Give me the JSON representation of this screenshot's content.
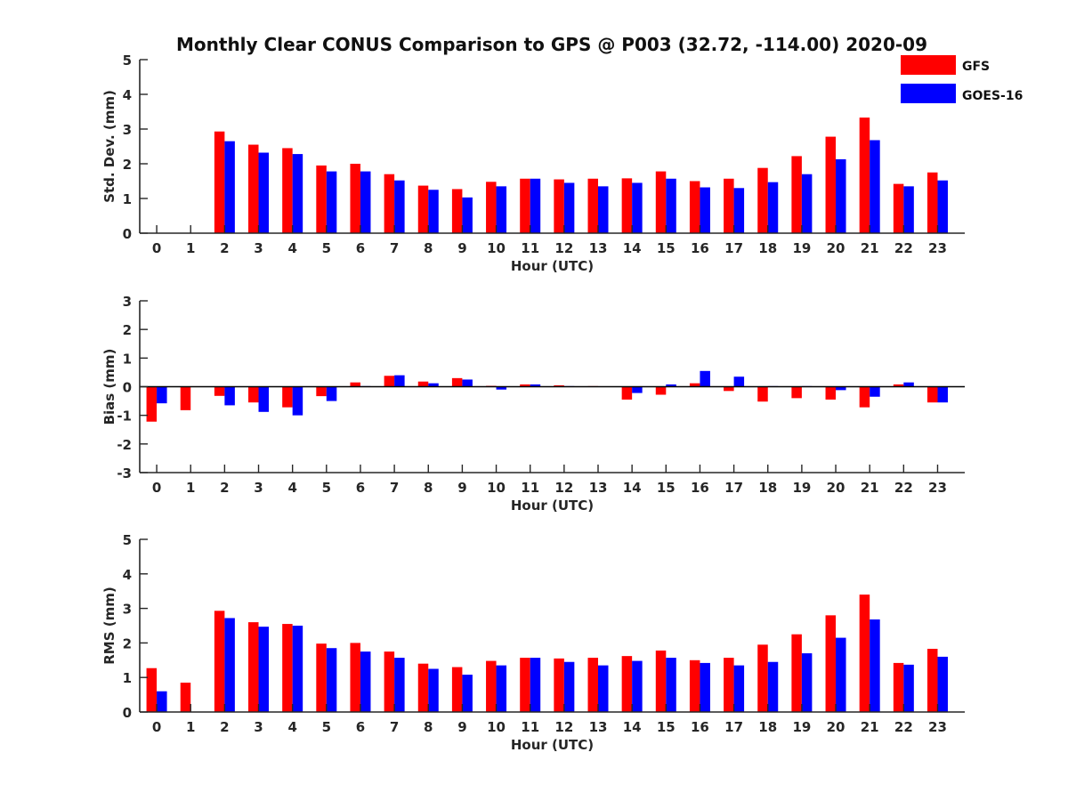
{
  "figure_title": "Monthly Clear CONUS Comparison to GPS @ P003 (32.72, -114.00) 2020-09",
  "legend": [
    {
      "label": "GFS",
      "color": "#ff0000"
    },
    {
      "label": "GOES-16",
      "color": "#0000ff"
    }
  ],
  "chart_data": [
    {
      "type": "bar",
      "xlabel": "Hour (UTC)",
      "ylabel": "Std. Dev. (mm)",
      "ylim": [
        0,
        5
      ],
      "yticks": [
        0,
        1,
        2,
        3,
        4,
        5
      ],
      "categories": [
        "0",
        "1",
        "2",
        "3",
        "4",
        "5",
        "6",
        "7",
        "8",
        "9",
        "10",
        "11",
        "12",
        "13",
        "14",
        "15",
        "16",
        "17",
        "18",
        "19",
        "20",
        "21",
        "22",
        "23"
      ],
      "series": [
        {
          "name": "GFS",
          "color": "#ff0000",
          "values": [
            0,
            0,
            2.93,
            2.55,
            2.45,
            1.95,
            2.0,
            1.7,
            1.37,
            1.27,
            1.48,
            1.57,
            1.55,
            1.57,
            1.58,
            1.78,
            1.5,
            1.57,
            1.88,
            2.22,
            2.78,
            3.33,
            1.42,
            1.75
          ]
        },
        {
          "name": "GOES-16",
          "color": "#0000ff",
          "values": [
            0,
            0,
            2.65,
            2.32,
            2.28,
            1.78,
            1.78,
            1.52,
            1.25,
            1.03,
            1.35,
            1.57,
            1.45,
            1.35,
            1.45,
            1.57,
            1.32,
            1.3,
            1.47,
            1.7,
            2.13,
            2.68,
            1.35,
            1.52
          ]
        }
      ]
    },
    {
      "type": "bar",
      "xlabel": "Hour (UTC)",
      "ylabel": "Bias (mm)",
      "ylim": [
        -3,
        3
      ],
      "yticks": [
        -3,
        -2,
        -1,
        0,
        1,
        2,
        3
      ],
      "zero_line": true,
      "categories": [
        "0",
        "1",
        "2",
        "3",
        "4",
        "5",
        "6",
        "7",
        "8",
        "9",
        "10",
        "11",
        "12",
        "13",
        "14",
        "15",
        "16",
        "17",
        "18",
        "19",
        "20",
        "21",
        "22",
        "23"
      ],
      "series": [
        {
          "name": "GFS",
          "color": "#ff0000",
          "values": [
            -1.22,
            -0.82,
            -0.32,
            -0.55,
            -0.72,
            -0.33,
            0.15,
            0.38,
            0.18,
            0.3,
            0.03,
            0.08,
            0.05,
            0.02,
            -0.45,
            -0.28,
            0.12,
            -0.15,
            -0.52,
            -0.4,
            -0.45,
            -0.72,
            0.08,
            -0.55
          ]
        },
        {
          "name": "GOES-16",
          "color": "#0000ff",
          "values": [
            -0.58,
            0,
            -0.65,
            -0.88,
            -1.0,
            -0.5,
            0.02,
            0.4,
            0.12,
            0.25,
            -0.1,
            0.08,
            0.02,
            0,
            -0.22,
            0.08,
            0.55,
            0.35,
            0.02,
            0.02,
            -0.12,
            -0.35,
            0.15,
            -0.55
          ]
        }
      ]
    },
    {
      "type": "bar",
      "xlabel": "Hour (UTC)",
      "ylabel": "RMS (mm)",
      "ylim": [
        0,
        5
      ],
      "yticks": [
        0,
        1,
        2,
        3,
        4,
        5
      ],
      "categories": [
        "0",
        "1",
        "2",
        "3",
        "4",
        "5",
        "6",
        "7",
        "8",
        "9",
        "10",
        "11",
        "12",
        "13",
        "14",
        "15",
        "16",
        "17",
        "18",
        "19",
        "20",
        "21",
        "22",
        "23"
      ],
      "series": [
        {
          "name": "GFS",
          "color": "#ff0000",
          "values": [
            1.27,
            0.85,
            2.93,
            2.6,
            2.55,
            1.98,
            2.0,
            1.75,
            1.4,
            1.3,
            1.48,
            1.57,
            1.55,
            1.57,
            1.62,
            1.78,
            1.5,
            1.57,
            1.95,
            2.25,
            2.8,
            3.4,
            1.42,
            1.83
          ]
        },
        {
          "name": "GOES-16",
          "color": "#0000ff",
          "values": [
            0.6,
            0,
            2.72,
            2.47,
            2.5,
            1.85,
            1.75,
            1.57,
            1.25,
            1.08,
            1.35,
            1.57,
            1.45,
            1.35,
            1.48,
            1.57,
            1.42,
            1.35,
            1.45,
            1.7,
            2.15,
            2.68,
            1.37,
            1.6
          ]
        }
      ]
    }
  ]
}
